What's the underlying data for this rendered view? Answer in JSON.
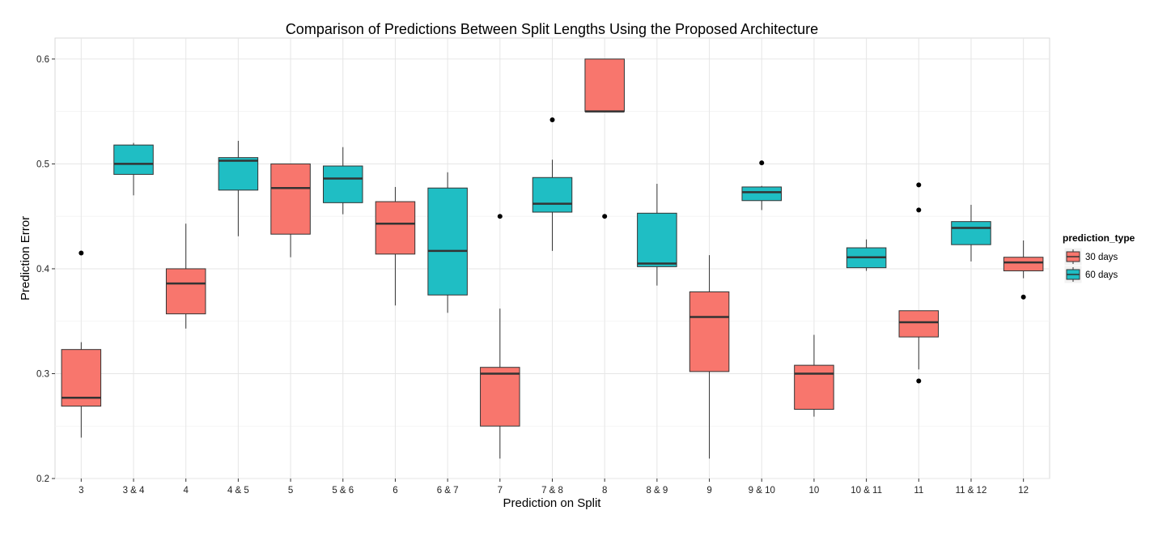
{
  "chart_data": {
    "type": "boxplot",
    "title": "Comparison of Predictions Between Split Lengths Using the Proposed Architecture",
    "xlabel": "Prediction on Split",
    "ylabel": "Prediction Error",
    "ylim": [
      0.2,
      0.62
    ],
    "yticks": [
      0.2,
      0.3,
      0.4,
      0.5,
      0.6
    ],
    "ytick_labels": [
      "0.2",
      "0.3",
      "0.4",
      "0.5",
      "0.6"
    ],
    "grid": true,
    "legend": {
      "title": "prediction_type",
      "position": "right",
      "entries": [
        {
          "label": "30 days",
          "color": "#F8766D"
        },
        {
          "label": "60 days",
          "color": "#1FBEC4"
        }
      ]
    },
    "categories": [
      "3",
      "3 & 4",
      "4",
      "4 & 5",
      "5",
      "5 & 6",
      "6",
      "6 & 7",
      "7",
      "7 & 8",
      "8",
      "8 & 9",
      "9",
      "9 & 10",
      "10",
      "10 & 11",
      "11",
      "11 & 12",
      "12"
    ],
    "boxes": [
      {
        "category": "3",
        "type": "30 days",
        "whisker_low": 0.239,
        "q1": 0.269,
        "median": 0.277,
        "q3": 0.323,
        "whisker_high": 0.33,
        "outliers": [
          0.415
        ]
      },
      {
        "category": "3 & 4",
        "type": "60 days",
        "whisker_low": 0.47,
        "q1": 0.49,
        "median": 0.5,
        "q3": 0.518,
        "whisker_high": 0.52,
        "outliers": []
      },
      {
        "category": "4",
        "type": "30 days",
        "whisker_low": 0.343,
        "q1": 0.357,
        "median": 0.386,
        "q3": 0.4,
        "whisker_high": 0.443,
        "outliers": []
      },
      {
        "category": "4 & 5",
        "type": "60 days",
        "whisker_low": 0.431,
        "q1": 0.475,
        "median": 0.503,
        "q3": 0.506,
        "whisker_high": 0.522,
        "outliers": []
      },
      {
        "category": "5",
        "type": "30 days",
        "whisker_low": 0.411,
        "q1": 0.433,
        "median": 0.477,
        "q3": 0.5,
        "whisker_high": 0.5,
        "outliers": []
      },
      {
        "category": "5 & 6",
        "type": "60 days",
        "whisker_low": 0.452,
        "q1": 0.463,
        "median": 0.486,
        "q3": 0.498,
        "whisker_high": 0.516,
        "outliers": []
      },
      {
        "category": "6",
        "type": "30 days",
        "whisker_low": 0.365,
        "q1": 0.414,
        "median": 0.443,
        "q3": 0.464,
        "whisker_high": 0.478,
        "outliers": []
      },
      {
        "category": "6 & 7",
        "type": "60 days",
        "whisker_low": 0.358,
        "q1": 0.375,
        "median": 0.417,
        "q3": 0.477,
        "whisker_high": 0.492,
        "outliers": []
      },
      {
        "category": "7",
        "type": "30 days",
        "whisker_low": 0.219,
        "q1": 0.25,
        "median": 0.3,
        "q3": 0.306,
        "whisker_high": 0.362,
        "outliers": [
          0.45
        ]
      },
      {
        "category": "7 & 8",
        "type": "60 days",
        "whisker_low": 0.417,
        "q1": 0.454,
        "median": 0.462,
        "q3": 0.487,
        "whisker_high": 0.504,
        "outliers": [
          0.542
        ]
      },
      {
        "category": "8",
        "type": "30 days",
        "whisker_low": 0.55,
        "q1": 0.55,
        "median": 0.55,
        "q3": 0.6,
        "whisker_high": 0.6,
        "outliers": [
          0.45
        ]
      },
      {
        "category": "8 & 9",
        "type": "60 days",
        "whisker_low": 0.384,
        "q1": 0.402,
        "median": 0.405,
        "q3": 0.453,
        "whisker_high": 0.481,
        "outliers": []
      },
      {
        "category": "9",
        "type": "30 days",
        "whisker_low": 0.219,
        "q1": 0.302,
        "median": 0.354,
        "q3": 0.378,
        "whisker_high": 0.413,
        "outliers": []
      },
      {
        "category": "9 & 10",
        "type": "60 days",
        "whisker_low": 0.456,
        "q1": 0.465,
        "median": 0.473,
        "q3": 0.478,
        "whisker_high": 0.479,
        "outliers": [
          0.501
        ]
      },
      {
        "category": "10",
        "type": "30 days",
        "whisker_low": 0.259,
        "q1": 0.266,
        "median": 0.3,
        "q3": 0.308,
        "whisker_high": 0.337,
        "outliers": []
      },
      {
        "category": "10 & 11",
        "type": "60 days",
        "whisker_low": 0.398,
        "q1": 0.401,
        "median": 0.411,
        "q3": 0.42,
        "whisker_high": 0.428,
        "outliers": []
      },
      {
        "category": "11",
        "type": "30 days",
        "whisker_low": 0.304,
        "q1": 0.335,
        "median": 0.349,
        "q3": 0.36,
        "whisker_high": 0.36,
        "outliers": [
          0.48,
          0.456,
          0.293
        ]
      },
      {
        "category": "11 & 12",
        "type": "60 days",
        "whisker_low": 0.407,
        "q1": 0.423,
        "median": 0.439,
        "q3": 0.445,
        "whisker_high": 0.461,
        "outliers": []
      },
      {
        "category": "12",
        "type": "30 days",
        "whisker_low": 0.391,
        "q1": 0.398,
        "median": 0.406,
        "q3": 0.411,
        "whisker_high": 0.427,
        "outliers": [
          0.373
        ]
      }
    ]
  }
}
